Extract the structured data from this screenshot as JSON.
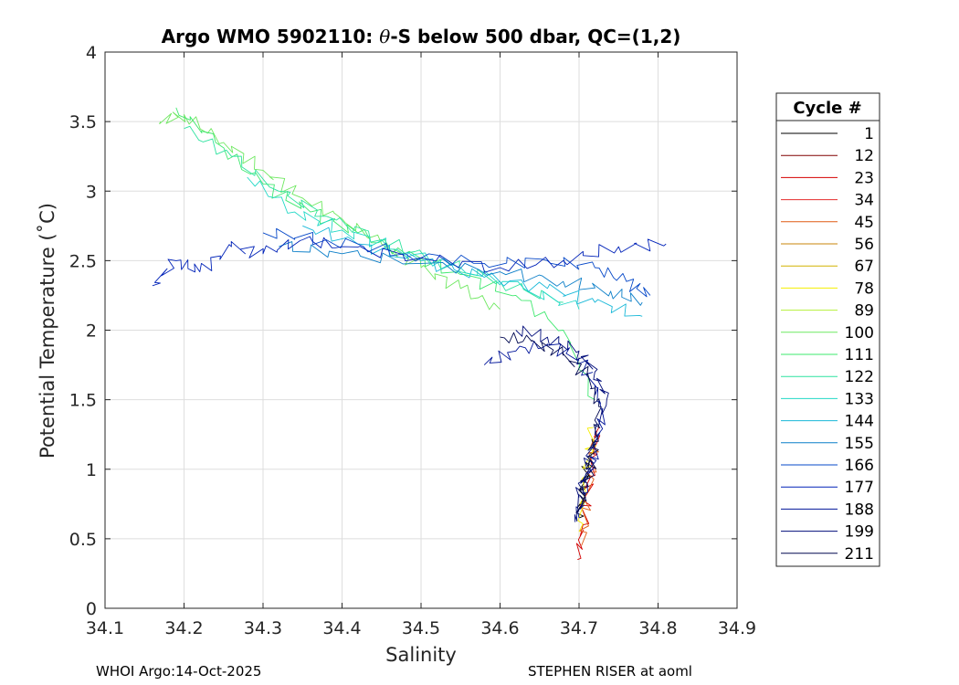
{
  "chart_data": {
    "type": "line",
    "title_prefix": "Argo WMO 5902110: ",
    "title_symbol": "θ",
    "title_suffix": "-S below 500 dbar,  QC=(1,2)",
    "xlabel": "Salinity",
    "ylabel": "Potential Temperature (˚C)",
    "xlim": [
      34.1,
      34.9
    ],
    "ylim": [
      0,
      4
    ],
    "xticks": [
      34.1,
      34.2,
      34.3,
      34.4,
      34.5,
      34.6,
      34.7,
      34.8,
      34.9
    ],
    "yticks": [
      0,
      0.5,
      1,
      1.5,
      2,
      2.5,
      3,
      3.5,
      4
    ],
    "xtick_labels": [
      "34.1",
      "34.2",
      "34.3",
      "34.4",
      "34.5",
      "34.6",
      "34.7",
      "34.8",
      "34.9"
    ],
    "ytick_labels": [
      "0",
      "0.5",
      "1",
      "1.5",
      "2",
      "2.5",
      "3",
      "3.5",
      "4"
    ],
    "grid": true,
    "legend": {
      "title": "Cycle #",
      "placement": "right-outside",
      "entries": [
        {
          "label": "1",
          "color": "#000000"
        },
        {
          "label": "12",
          "color": "#800000"
        },
        {
          "label": "23",
          "color": "#d40000"
        },
        {
          "label": "34",
          "color": "#e52b2b"
        },
        {
          "label": "45",
          "color": "#e05a12"
        },
        {
          "label": "56",
          "color": "#c8860a"
        },
        {
          "label": "67",
          "color": "#d2b200"
        },
        {
          "label": "78",
          "color": "#f5ee00"
        },
        {
          "label": "89",
          "color": "#b5f03a"
        },
        {
          "label": "100",
          "color": "#6ee860"
        },
        {
          "label": "111",
          "color": "#3ee86e"
        },
        {
          "label": "122",
          "color": "#2fe3a0"
        },
        {
          "label": "133",
          "color": "#22d8c6"
        },
        {
          "label": "144",
          "color": "#18b8d8"
        },
        {
          "label": "155",
          "color": "#0a7ec8"
        },
        {
          "label": "166",
          "color": "#0648c8"
        },
        {
          "label": "177",
          "color": "#0022b8"
        },
        {
          "label": "188",
          "color": "#00149a"
        },
        {
          "label": "199",
          "color": "#000c7a"
        },
        {
          "label": "211",
          "color": "#000850"
        }
      ]
    },
    "series": [
      {
        "name": "1",
        "color": "#000000",
        "x": [
          34.72,
          34.71,
          34.705,
          34.7
        ],
        "y": [
          1.2,
          1.0,
          0.85,
          0.65
        ]
      },
      {
        "name": "23",
        "color": "#d40000",
        "x": [
          34.725,
          34.715,
          34.705,
          34.698
        ],
        "y": [
          1.3,
          0.95,
          0.6,
          0.35
        ]
      },
      {
        "name": "45",
        "color": "#e05a12",
        "x": [
          34.722,
          34.712,
          34.703
        ],
        "y": [
          1.25,
          0.85,
          0.45
        ]
      },
      {
        "name": "78",
        "color": "#f5ee00",
        "x": [
          34.718,
          34.708,
          34.7
        ],
        "y": [
          1.3,
          0.95,
          0.55
        ]
      },
      {
        "name": "100",
        "color": "#6ee860",
        "x": [
          34.17,
          34.2,
          34.25,
          34.3,
          34.35,
          34.4,
          34.45,
          34.5,
          34.55,
          34.6
        ],
        "y": [
          3.5,
          3.55,
          3.35,
          3.15,
          2.95,
          2.8,
          2.62,
          2.45,
          2.3,
          2.15
        ]
      },
      {
        "name": "111",
        "color": "#3ee86e",
        "x": [
          34.19,
          34.24,
          34.3,
          34.36,
          34.42,
          34.48,
          34.55,
          34.62,
          34.68,
          34.72
        ],
        "y": [
          3.6,
          3.35,
          3.05,
          2.85,
          2.7,
          2.55,
          2.4,
          2.25,
          2.0,
          1.5
        ]
      },
      {
        "name": "122",
        "color": "#2fe3a0",
        "x": [
          34.2,
          34.26,
          34.32,
          34.38,
          34.45,
          34.52,
          34.6,
          34.68
        ],
        "y": [
          3.45,
          3.25,
          3.0,
          2.82,
          2.65,
          2.5,
          2.35,
          2.2
        ]
      },
      {
        "name": "133",
        "color": "#22d8c6",
        "x": [
          34.28,
          34.34,
          34.4,
          34.47,
          34.55,
          34.63,
          34.7
        ],
        "y": [
          3.1,
          2.85,
          2.72,
          2.58,
          2.45,
          2.3,
          2.15
        ]
      },
      {
        "name": "144",
        "color": "#18b8d8",
        "x": [
          34.35,
          34.42,
          34.5,
          34.58,
          34.66,
          34.72,
          34.78
        ],
        "y": [
          2.75,
          2.62,
          2.5,
          2.38,
          2.3,
          2.2,
          2.1
        ]
      },
      {
        "name": "155",
        "color": "#0a7ec8",
        "x": [
          34.32,
          34.4,
          34.5,
          34.6,
          34.68,
          34.74,
          34.78
        ],
        "y": [
          2.6,
          2.55,
          2.48,
          2.42,
          2.35,
          2.28,
          2.2
        ]
      },
      {
        "name": "166",
        "color": "#0648c8",
        "x": [
          34.3,
          34.38,
          34.48,
          34.58,
          34.66,
          34.72,
          34.76,
          34.79
        ],
        "y": [
          2.7,
          2.65,
          2.55,
          2.48,
          2.5,
          2.45,
          2.35,
          2.25
        ]
      },
      {
        "name": "177",
        "color": "#0022b8",
        "x": [
          34.16,
          34.19,
          34.22,
          34.26,
          34.3,
          34.35,
          34.4,
          34.5,
          34.6,
          34.68,
          34.75,
          34.81
        ],
        "y": [
          2.32,
          2.5,
          2.42,
          2.6,
          2.55,
          2.65,
          2.6,
          2.52,
          2.45,
          2.5,
          2.6,
          2.62
        ]
      },
      {
        "name": "188",
        "color": "#00149a",
        "x": [
          34.58,
          34.62,
          34.66,
          34.7,
          34.72,
          34.73,
          34.72,
          34.71,
          34.7
        ],
        "y": [
          1.75,
          1.85,
          1.9,
          1.8,
          1.6,
          1.4,
          1.15,
          0.9,
          0.65
        ]
      },
      {
        "name": "199",
        "color": "#000c7a",
        "x": [
          34.62,
          34.66,
          34.7,
          34.72,
          34.735,
          34.72,
          34.71,
          34.7,
          34.695
        ],
        "y": [
          2.0,
          1.95,
          1.85,
          1.7,
          1.5,
          1.25,
          1.0,
          0.8,
          0.62
        ]
      },
      {
        "name": "211",
        "color": "#000850",
        "x": [
          34.6,
          34.64,
          34.68,
          34.71,
          34.725,
          34.72,
          34.71,
          34.7
        ],
        "y": [
          1.95,
          1.92,
          1.82,
          1.68,
          1.45,
          1.15,
          0.9,
          0.7
        ]
      }
    ]
  },
  "footer": {
    "left": "WHOI Argo:14-Oct-2025",
    "right": "STEPHEN RISER at aoml"
  }
}
